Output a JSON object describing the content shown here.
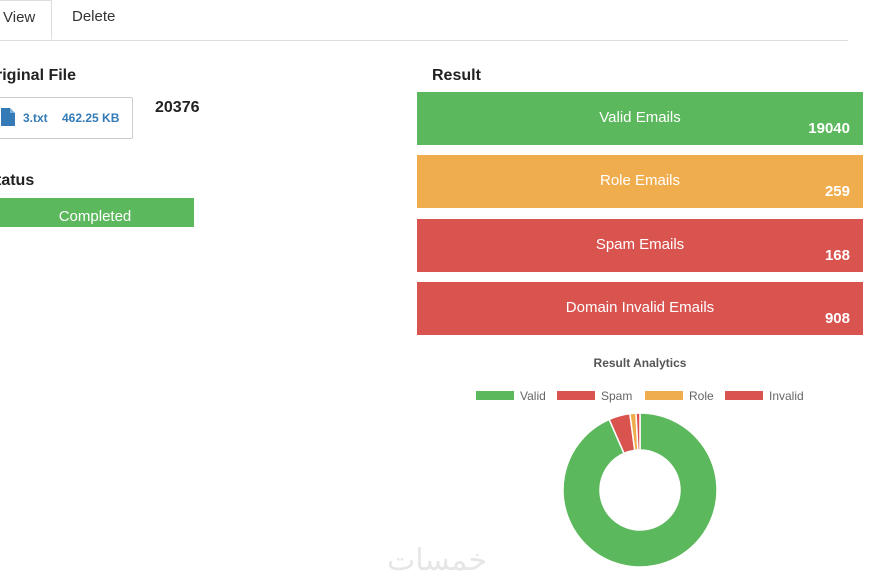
{
  "tabs": [
    {
      "label": "View",
      "active": true
    },
    {
      "label": "Delete",
      "active": false
    }
  ],
  "original_file": {
    "heading": "riginal File",
    "file_name": "3.txt",
    "file_size": "462.25 KB",
    "count": "20376"
  },
  "status": {
    "heading": "tatus",
    "value": "Completed"
  },
  "result": {
    "heading": "Result",
    "items": [
      {
        "label": "Valid Emails",
        "count": "19040",
        "color": "#5cb85c"
      },
      {
        "label": "Role Emails",
        "count": "259",
        "color": "#f0ad4e"
      },
      {
        "label": "Spam Emails",
        "count": "168",
        "color": "#d9534f"
      },
      {
        "label": "Domain Invalid Emails",
        "count": "908",
        "color": "#d9534f"
      }
    ]
  },
  "chart_data": {
    "type": "pie",
    "title": "Result Analytics",
    "legend_position": "top",
    "series": [
      {
        "name": "Valid",
        "value": 19040,
        "color": "#5cb85c"
      },
      {
        "name": "Spam",
        "value": 168,
        "color": "#d9534f"
      },
      {
        "name": "Role",
        "value": 259,
        "color": "#f0ad4e"
      },
      {
        "name": "Invalid",
        "value": 908,
        "color": "#d9534f"
      }
    ]
  },
  "watermark": "خمسات"
}
